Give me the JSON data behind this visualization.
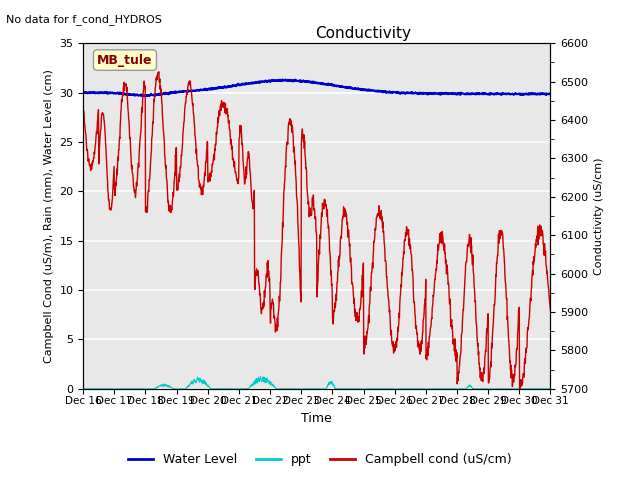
{
  "title": "Conductivity",
  "top_left_text": "No data for f_cond_HYDROS",
  "legend_box_label": "MB_tule",
  "xlabel": "Time",
  "ylabel_left": "Campbell Cond (uS/m), Rain (mm), Water Level (cm)",
  "ylabel_right": "Conductivity (uS/cm)",
  "xlim": [
    0,
    15
  ],
  "ylim_left": [
    0,
    35
  ],
  "ylim_right": [
    5700,
    6600
  ],
  "yticks_left": [
    0,
    5,
    10,
    15,
    20,
    25,
    30,
    35
  ],
  "yticks_right": [
    5700,
    5800,
    5900,
    6000,
    6100,
    6200,
    6300,
    6400,
    6500,
    6600
  ],
  "xtick_labels": [
    "Dec 16",
    "Dec 17",
    "Dec 18",
    "Dec 19",
    "Dec 20",
    "Dec 21",
    "Dec 22",
    "Dec 23",
    "Dec 24",
    "Dec 25",
    "Dec 26",
    "Dec 27",
    "Dec 28",
    "Dec 29",
    "Dec 30",
    "Dec 31"
  ],
  "bg_color": "#e8e8e8",
  "grid_color": "#ffffff",
  "water_level_color": "#0000cc",
  "ppt_color": "#00cccc",
  "campbell_color": "#cc0000",
  "legend_entries": [
    "Water Level",
    "ppt",
    "Campbell cond (uS/cm)"
  ],
  "legend_colors": [
    "#0000cc",
    "#00cccc",
    "#cc0000"
  ]
}
